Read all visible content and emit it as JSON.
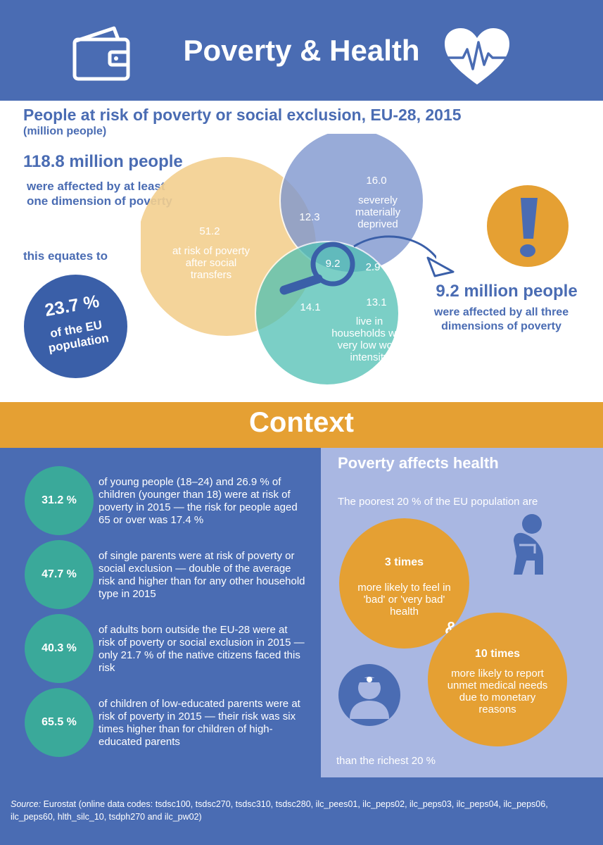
{
  "header": {
    "title": "Poverty & Health",
    "left_icon": "wallet-icon",
    "right_icon": "heartbeat-icon"
  },
  "venn": {
    "title": "People at risk of poverty or social exclusion, EU-28, 2015",
    "subtitle": "(million people)",
    "total_big": "118.8 million people",
    "total_desc": "were affected by at least one dimension of poverty",
    "equates": "this equates to",
    "eu_pct": "23.7 %",
    "eu_desc": "of the EU population",
    "sets": {
      "poverty": {
        "value": "51.2",
        "label": "at risk of poverty after social transfers",
        "color": "#f3cf8f"
      },
      "deprived": {
        "value": "16.0",
        "label": "severely materially deprived",
        "color": "#7f97cf"
      },
      "work": {
        "value": "13.1",
        "label": "live in households with very low work intensity",
        "color": "#4fc0b3"
      }
    },
    "overlaps": {
      "poverty_deprived": "12.3",
      "poverty_work": "14.1",
      "deprived_work": "2.9",
      "all_three": "9.2"
    },
    "all_three_big": "9.2 million people",
    "all_three_desc": "were affected by all three dimensions of poverty",
    "magnifier_icon": "magnifier-icon",
    "exclaim_icon": "exclamation-icon"
  },
  "context": {
    "title": "Context",
    "stats": [
      {
        "value": "31.2 %",
        "text": "of young people (18–24) and 26.9 % of children (younger than 18) were at risk of poverty in 2015 — the risk for people aged 65 or over was 17.4 %"
      },
      {
        "value": "47.7 %",
        "text": "of single parents were at risk of poverty or social exclusion — double of the average risk and higher than for any other household type in 2015"
      },
      {
        "value": "40.3 %",
        "text": "of adults born outside the EU-28 were at risk of poverty or social exclusion in 2015 — only 21.7 % of the native citizens faced this risk"
      },
      {
        "value": "65.5 %",
        "text": "of children of low-educated parents were at risk of poverty in 2015 — their risk was six times higher than for children of high-educated parents"
      }
    ]
  },
  "health": {
    "title": "Poverty affects health",
    "intro": "The poorest 20 % of the EU population are",
    "c1_big": "3 times",
    "c1_text": "more likely to feel in 'bad' or 'very bad' health",
    "amp": "&",
    "c2_big": "10 times",
    "c2_text": "more likely to report unmet medical needs due to monetary reasons",
    "outro": "than the richest 20 %",
    "sick_icon": "sick-person-icon",
    "doctor_icon": "doctor-icon"
  },
  "footer": {
    "source_label": "Source:",
    "source_text": " Eurostat (online data codes: tsdsc100, tsdsc270, tsdsc310, tsdsc280, ilc_pees01, ilc_peps02, ilc_peps03, ilc_peps04, ilc_peps06, ilc_peps60, hlth_silc_10, tsdph270 and ilc_pw02)"
  },
  "colors": {
    "brand_blue": "#4a6cb3",
    "orange": "#e5a033",
    "teal": "#3aa99a",
    "light_blue": "#a9b7e2"
  }
}
